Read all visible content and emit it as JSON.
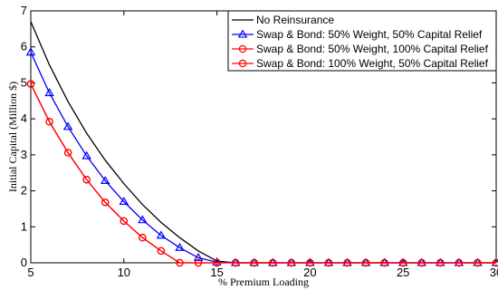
{
  "chart_data": {
    "type": "line",
    "title": "",
    "xlabel": "% Premium Loading",
    "ylabel": "Initial Capital (Million $)",
    "xlim": [
      5,
      30
    ],
    "ylim": [
      0,
      7
    ],
    "xticks": [
      5,
      10,
      15,
      20,
      25,
      30
    ],
    "yticks": [
      0,
      1,
      2,
      3,
      4,
      5,
      6,
      7
    ],
    "grid": false,
    "legend_position": "top-right",
    "series": [
      {
        "name": "No Reinsurance",
        "color": "#000000",
        "marker": "none",
        "x": [
          5,
          6,
          7,
          8,
          9,
          10,
          11,
          12,
          13,
          14,
          15,
          16,
          17,
          18,
          19,
          20,
          21,
          22,
          23,
          24,
          25,
          26,
          27,
          28,
          29,
          30
        ],
        "y": [
          6.7,
          5.5,
          4.48,
          3.6,
          2.85,
          2.2,
          1.62,
          1.12,
          0.7,
          0.33,
          0.05,
          0,
          0,
          0,
          0,
          0,
          0,
          0,
          0,
          0,
          0,
          0,
          0,
          0,
          0,
          0
        ]
      },
      {
        "name": "Swap & Bond: 50% Weight, 50% Capital Relief",
        "color": "#0000ff",
        "marker": "triangle",
        "x": [
          5,
          6,
          7,
          8,
          9,
          10,
          11,
          12,
          13,
          14,
          15,
          16,
          17,
          18,
          19,
          20,
          21,
          22,
          23,
          24,
          25,
          26,
          27,
          28,
          29,
          30
        ],
        "y": [
          5.85,
          4.72,
          3.78,
          2.97,
          2.28,
          1.7,
          1.19,
          0.76,
          0.42,
          0.14,
          0.02,
          0,
          0,
          0,
          0,
          0,
          0,
          0,
          0,
          0,
          0,
          0,
          0,
          0,
          0,
          0
        ]
      },
      {
        "name": "Swap & Bond: 50% Weight, 100% Capital Relief",
        "color": "#ff0000",
        "marker": "circle",
        "x": [
          5,
          6,
          7,
          8,
          9,
          10,
          11,
          12,
          13,
          14,
          15,
          16,
          17,
          18,
          19,
          20,
          21,
          22,
          23,
          24,
          25,
          26,
          27,
          28,
          29,
          30
        ],
        "y": [
          4.97,
          3.92,
          3.06,
          2.31,
          1.68,
          1.16,
          0.7,
          0.33,
          0,
          0,
          0,
          0,
          0,
          0,
          0,
          0,
          0,
          0,
          0,
          0,
          0,
          0,
          0,
          0,
          0,
          0
        ]
      },
      {
        "name": "Swap & Bond: 100% Weight, 50% Capital Relief",
        "color": "#ff0000",
        "marker": "circle",
        "x": [
          5,
          6,
          7,
          8,
          9,
          10,
          11,
          12,
          13,
          14,
          15,
          16,
          17,
          18,
          19,
          20,
          21,
          22,
          23,
          24,
          25,
          26,
          27,
          28,
          29,
          30
        ],
        "y": [
          4.97,
          3.92,
          3.06,
          2.31,
          1.68,
          1.16,
          0.7,
          0.33,
          0,
          0,
          0,
          0,
          0,
          0,
          0,
          0,
          0,
          0,
          0,
          0,
          0,
          0,
          0,
          0,
          0,
          0
        ]
      }
    ]
  }
}
